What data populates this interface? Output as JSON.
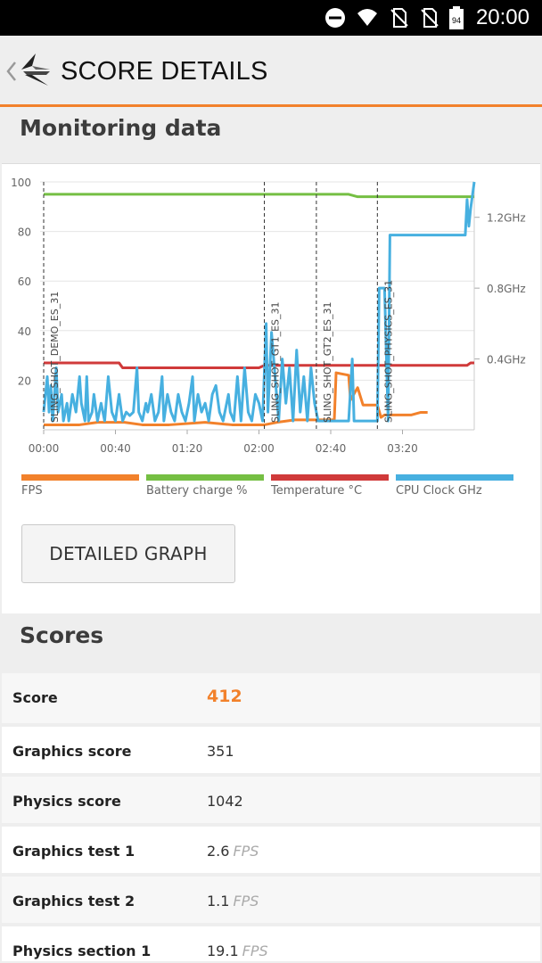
{
  "status_bar": {
    "time": "20:00",
    "battery_level": "94",
    "icons": [
      "do-not-disturb-icon",
      "wifi-icon",
      "no-sim-icon",
      "no-sim-icon",
      "battery-icon"
    ]
  },
  "app_bar": {
    "title": "SCORE DETAILS",
    "back_icon": "chevron-left-icon",
    "logo_icon": "3dmark-logo-icon"
  },
  "monitoring": {
    "title": "Monitoring data",
    "button_label": "DETAILED GRAPH"
  },
  "chart_data": {
    "type": "line",
    "x_tick_labels": [
      "00:00",
      "00:40",
      "01:20",
      "02:00",
      "02:40",
      "03:20"
    ],
    "x_ticks_seconds": [
      0,
      40,
      80,
      120,
      160,
      200
    ],
    "xlim": [
      0,
      240
    ],
    "ylim_left": [
      0,
      100
    ],
    "y_left_tick_labels": [
      "20",
      "40",
      "60",
      "80",
      "100"
    ],
    "y_left_ticks": [
      20,
      40,
      60,
      80,
      100
    ],
    "y_right_tick_labels": [
      "0.4GHz",
      "0.8GHz",
      "1.2GHz"
    ],
    "y_right_ticks_ghz": [
      0.4,
      0.8,
      1.2
    ],
    "ylim_right_ghz": [
      0,
      1.4
    ],
    "markers": [
      {
        "x": 0,
        "label": "SLING_SHOT_DEMO_ES_31"
      },
      {
        "x": 123,
        "label": "SLING_SHOT_GT1_ES_31"
      },
      {
        "x": 152,
        "label": "SLING_SHOT_GT2_ES_31"
      },
      {
        "x": 186,
        "label": "SLING_SHOT_PHYSICS_ES_31"
      }
    ],
    "series": [
      {
        "name": "FPS",
        "color": "#f2812b",
        "points": [
          [
            0,
            2
          ],
          [
            20,
            2
          ],
          [
            30,
            3
          ],
          [
            45,
            3
          ],
          [
            55,
            2
          ],
          [
            70,
            2
          ],
          [
            90,
            3
          ],
          [
            105,
            2
          ],
          [
            123,
            2
          ],
          [
            130,
            3
          ],
          [
            140,
            4
          ],
          [
            150,
            4
          ],
          [
            155,
            4
          ],
          [
            162,
            4
          ],
          [
            163,
            23
          ],
          [
            170,
            22
          ],
          [
            171,
            12
          ],
          [
            175,
            17
          ],
          [
            178,
            10
          ],
          [
            186,
            10
          ],
          [
            188,
            5
          ],
          [
            190,
            6
          ],
          [
            205,
            6
          ],
          [
            210,
            7
          ],
          [
            214,
            7
          ]
        ]
      },
      {
        "name": "Battery charge %",
        "color": "#75bf43",
        "points": [
          [
            0,
            95
          ],
          [
            170,
            95
          ],
          [
            175,
            94
          ],
          [
            240,
            94
          ]
        ]
      },
      {
        "name": "Temperature °C",
        "color": "#d03a3a",
        "points": [
          [
            0,
            27
          ],
          [
            42,
            27
          ],
          [
            44,
            25
          ],
          [
            120,
            25
          ],
          [
            123,
            26
          ],
          [
            236,
            26
          ],
          [
            238,
            27
          ],
          [
            240,
            27
          ]
        ]
      },
      {
        "name": "CPU Clock GHz",
        "color": "#47b0e0",
        "points_ghz": [
          [
            0,
            0.1
          ],
          [
            2,
            0.3
          ],
          [
            3,
            0.1
          ],
          [
            4,
            0.25
          ],
          [
            5,
            0.05
          ],
          [
            7,
            0.35
          ],
          [
            8,
            0.1
          ],
          [
            10,
            0.2
          ],
          [
            11,
            0.05
          ],
          [
            13,
            0.15
          ],
          [
            14,
            0.05
          ],
          [
            16,
            0.2
          ],
          [
            18,
            0.1
          ],
          [
            20,
            0.3
          ],
          [
            21,
            0.15
          ],
          [
            23,
            0.05
          ],
          [
            24,
            0.3
          ],
          [
            25,
            0.05
          ],
          [
            27,
            0.1
          ],
          [
            28,
            0.2
          ],
          [
            30,
            0.05
          ],
          [
            32,
            0.15
          ],
          [
            34,
            0.05
          ],
          [
            36,
            0.3
          ],
          [
            38,
            0.1
          ],
          [
            40,
            0.05
          ],
          [
            42,
            0.2
          ],
          [
            44,
            0.05
          ],
          [
            46,
            0.1
          ],
          [
            48,
            0.08
          ],
          [
            50,
            0.1
          ],
          [
            52,
            0.35
          ],
          [
            53,
            0.1
          ],
          [
            55,
            0.05
          ],
          [
            57,
            0.15
          ],
          [
            58,
            0.1
          ],
          [
            60,
            0.2
          ],
          [
            62,
            0.05
          ],
          [
            64,
            0.1
          ],
          [
            66,
            0.3
          ],
          [
            67,
            0.05
          ],
          [
            69,
            0.2
          ],
          [
            71,
            0.1
          ],
          [
            73,
            0.05
          ],
          [
            75,
            0.2
          ],
          [
            77,
            0.1
          ],
          [
            79,
            0.05
          ],
          [
            81,
            0.15
          ],
          [
            83,
            0.3
          ],
          [
            84,
            0.05
          ],
          [
            86,
            0.2
          ],
          [
            88,
            0.1
          ],
          [
            90,
            0.15
          ],
          [
            92,
            0.05
          ],
          [
            94,
            0.2
          ],
          [
            96,
            0.25
          ],
          [
            98,
            0.1
          ],
          [
            100,
            0.05
          ],
          [
            103,
            0.2
          ],
          [
            104,
            0.1
          ],
          [
            106,
            0.05
          ],
          [
            108,
            0.3
          ],
          [
            110,
            0.05
          ],
          [
            112,
            0.35
          ],
          [
            114,
            0.1
          ],
          [
            116,
            0.05
          ],
          [
            118,
            0.2
          ],
          [
            120,
            0.15
          ],
          [
            122,
            0.05
          ],
          [
            124,
            0.6
          ],
          [
            125,
            0.1
          ],
          [
            127,
            0.55
          ],
          [
            129,
            0.3
          ],
          [
            131,
            0.05
          ],
          [
            133,
            0.4
          ],
          [
            135,
            0.15
          ],
          [
            137,
            0.35
          ],
          [
            139,
            0.05
          ],
          [
            141,
            0.45
          ],
          [
            143,
            0.1
          ],
          [
            145,
            0.3
          ],
          [
            147,
            0.05
          ],
          [
            149,
            0.35
          ],
          [
            151,
            0.15
          ],
          [
            152,
            0.1
          ],
          [
            153,
            0.05
          ],
          [
            160,
            0.05
          ],
          [
            164,
            0.05
          ],
          [
            170,
            0.05
          ],
          [
            172,
            0.4
          ],
          [
            173,
            0.05
          ],
          [
            180,
            0.05
          ],
          [
            186,
            0.05
          ],
          [
            187,
            0.8
          ],
          [
            190,
            0.8
          ],
          [
            192,
            0.05
          ],
          [
            193,
            1.1
          ],
          [
            220,
            1.1
          ],
          [
            235,
            1.1
          ],
          [
            236,
            1.3
          ],
          [
            237,
            1.15
          ],
          [
            238,
            1.25
          ],
          [
            240,
            1.4
          ]
        ]
      }
    ]
  },
  "legend": [
    {
      "label": "FPS",
      "color": "#f2812b"
    },
    {
      "label": "Battery charge %",
      "color": "#75bf43"
    },
    {
      "label": "Temperature °C",
      "color": "#d03a3a"
    },
    {
      "label": "CPU Clock GHz",
      "color": "#47b0e0"
    }
  ],
  "scores": {
    "title": "Scores",
    "rows": [
      {
        "label": "Score",
        "value": "412",
        "unit": ""
      },
      {
        "label": "Graphics score",
        "value": "351",
        "unit": ""
      },
      {
        "label": "Physics score",
        "value": "1042",
        "unit": ""
      },
      {
        "label": "Graphics test 1",
        "value": "2.6",
        "unit": "FPS"
      },
      {
        "label": "Graphics test 2",
        "value": "1.1",
        "unit": "FPS"
      },
      {
        "label": "Physics section 1",
        "value": "19.1",
        "unit": "FPS"
      }
    ]
  }
}
